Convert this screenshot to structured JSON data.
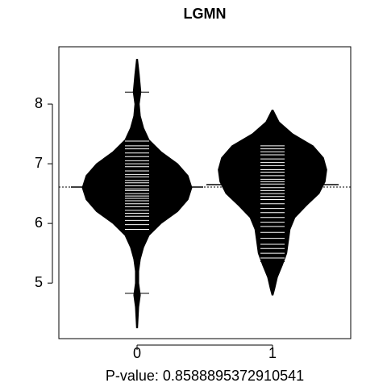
{
  "chart_data": {
    "type": "beanplot",
    "title": "LGMN",
    "x_label": "P-value: 0.8588895372910541",
    "categories": [
      "0",
      "1"
    ],
    "ylim": [
      4.07,
      8.96
    ],
    "yticks": [
      5,
      6,
      7,
      8
    ],
    "overall_mean": 6.61,
    "color": "#000000",
    "point_color": "#ffffff",
    "beans": [
      {
        "mean": 6.61,
        "density_y": [
          8.75,
          8.5,
          8.2,
          8.0,
          7.8,
          7.6,
          7.4,
          7.2,
          7.0,
          6.8,
          6.6,
          6.4,
          6.2,
          6.0,
          5.8,
          5.6,
          5.4,
          5.2,
          5.0,
          4.8,
          4.6,
          4.25
        ],
        "density": [
          0.01,
          0.04,
          0.07,
          0.04,
          0.06,
          0.12,
          0.22,
          0.44,
          0.74,
          0.93,
          1.0,
          0.93,
          0.74,
          0.44,
          0.22,
          0.12,
          0.06,
          0.03,
          0.03,
          0.06,
          0.03,
          0.01
        ],
        "points": [
          8.2,
          7.38,
          7.3,
          7.25,
          7.18,
          7.12,
          7.05,
          7.0,
          6.95,
          6.88,
          6.82,
          6.78,
          6.72,
          6.68,
          6.63,
          6.58,
          6.55,
          6.5,
          6.46,
          6.42,
          6.38,
          6.33,
          6.28,
          6.22,
          6.17,
          6.12,
          6.05,
          5.98,
          5.9,
          4.83
        ]
      },
      {
        "mean": 6.65,
        "density_y": [
          7.9,
          7.7,
          7.5,
          7.3,
          7.1,
          6.9,
          6.7,
          6.5,
          6.3,
          6.1,
          5.9,
          5.7,
          5.5,
          5.3,
          5.1,
          4.9,
          4.8
        ],
        "density": [
          0.01,
          0.12,
          0.37,
          0.74,
          0.93,
          0.99,
          0.96,
          0.85,
          0.62,
          0.41,
          0.32,
          0.29,
          0.26,
          0.18,
          0.09,
          0.04,
          0.01
        ],
        "points": [
          7.3,
          7.25,
          7.2,
          7.15,
          7.08,
          7.02,
          6.97,
          6.9,
          6.86,
          6.8,
          6.74,
          6.7,
          6.66,
          6.6,
          6.55,
          6.5,
          6.45,
          6.4,
          6.33,
          6.25,
          6.18,
          6.1,
          6.02,
          5.95,
          5.85,
          5.75,
          5.65,
          5.58,
          5.5,
          5.42,
          5.36
        ]
      }
    ]
  }
}
